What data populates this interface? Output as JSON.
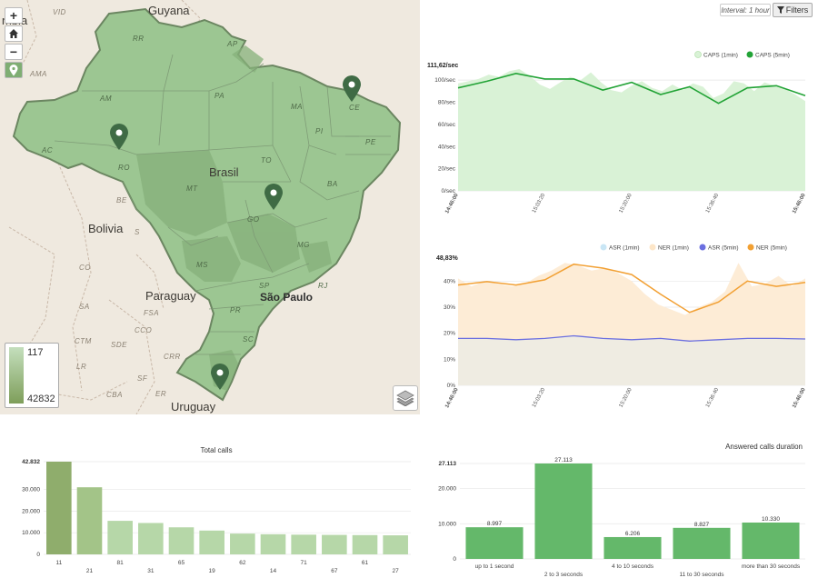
{
  "map": {
    "country_labels": [
      "Guyana",
      "Bolivia",
      "Paraguay",
      "Uruguay",
      "Brasil",
      "mbia"
    ],
    "city_label": "São Paulo",
    "state_labels": [
      "RR",
      "AP",
      "AM",
      "PA",
      "MA",
      "CE",
      "PI",
      "PE",
      "AC",
      "RO",
      "MT",
      "TO",
      "BA",
      "GO",
      "MG",
      "MS",
      "SP",
      "RJ",
      "PR",
      "SC"
    ],
    "region_labels": [
      "VID",
      "AMA",
      "BE",
      "S",
      "CO",
      "SA",
      "CTM",
      "SDE",
      "CCO",
      "FSA",
      "LR",
      "SF",
      "CBA",
      "CRR",
      "ER"
    ],
    "controls": {
      "zoom_in": "+",
      "zoom_out": "−"
    },
    "legend": {
      "max": "117",
      "min": "42832",
      "color_top": "#c4dfbd",
      "color_bottom": "#7e9e5a"
    },
    "markers": 4,
    "fill_color": "#9cc692",
    "marker_color": "#3f6b45"
  },
  "toolbar": {
    "interval": "Interval: 1 hour",
    "filters": "Filters"
  },
  "caps_chart": {
    "ymax_label": "111,62/sec",
    "y_ticks": [
      "100/sec",
      "80/sec",
      "60/sec",
      "40/sec",
      "20/sec",
      "0/sec"
    ],
    "x_ticks": [
      "14:46:00",
      "15:03:20",
      "15:20:00",
      "15:36:40",
      "15:46:00"
    ],
    "legend": [
      "CAPS (1min)",
      "CAPS (5min)"
    ],
    "colors": {
      "area": "#d9f2d6",
      "line": "#22a336"
    },
    "y_min": 0,
    "y_max": 111.62,
    "series_1min": [
      97,
      99,
      101,
      105,
      103,
      108,
      110,
      104,
      96,
      92,
      98,
      103,
      100,
      107,
      98,
      91,
      89,
      95,
      99,
      93,
      90,
      96,
      91,
      97,
      94,
      84,
      88,
      99,
      97,
      90,
      98,
      95,
      92,
      87,
      81
    ],
    "series_5min": [
      93,
      99,
      106,
      101,
      101,
      91,
      98,
      87,
      94,
      79,
      93,
      95,
      86
    ]
  },
  "asr_chart": {
    "ymax_label": "48,83%",
    "y_ticks": [
      "40%",
      "30%",
      "20%",
      "10%",
      "0%"
    ],
    "x_ticks": [
      "14:46:00",
      "15:03:20",
      "15:20:00",
      "15:36:40",
      "15:46:00"
    ],
    "legend": [
      "ASR (1min)",
      "NER (1min)",
      "ASR (5min)",
      "NER (5min)"
    ],
    "colors": {
      "asr_area": "#efece2",
      "ner_area": "#fdecd6",
      "asr_line": "#6b6fe0",
      "ner_line": "#f2a033",
      "asr_legend": "#c9e6f5",
      "ner_legend": "#fde6c8"
    },
    "y_min": 0,
    "y_max": 48.83,
    "ner_1min": [
      41,
      38,
      40,
      39,
      38,
      39,
      42,
      44,
      47,
      46,
      44,
      45,
      43,
      40,
      35,
      31,
      29,
      27,
      30,
      32,
      36,
      47,
      38,
      39,
      42,
      38,
      41
    ],
    "ner_5min": [
      38.5,
      39.8,
      38.5,
      40.5,
      46.5,
      45,
      42.5,
      35,
      28,
      32,
      40,
      38,
      39.5
    ],
    "asr_5min": [
      18,
      18,
      17.5,
      18,
      19,
      18,
      17.5,
      18,
      17,
      17.5,
      18,
      18,
      17.8
    ]
  },
  "total_calls": {
    "title": "Total calls",
    "y_ticks": [
      "42.832",
      "30.000",
      "20.000",
      "10.000",
      "0"
    ],
    "y_max": 42832,
    "categories": [
      "11",
      "21",
      "81",
      "31",
      "65",
      "19",
      "62",
      "14",
      "71",
      "67",
      "61",
      "27"
    ],
    "values": [
      42832,
      31000,
      15500,
      14500,
      12500,
      11000,
      9600,
      9300,
      9100,
      9000,
      8900,
      8800
    ],
    "colors": [
      "#8fad6c",
      "#a3c488",
      "#b6d7a8",
      "#b6d7a8",
      "#b6d7a8",
      "#b6d7a8",
      "#b6d7a8",
      "#b6d7a8",
      "#b6d7a8",
      "#b6d7a8",
      "#b6d7a8",
      "#b6d7a8"
    ]
  },
  "answered_duration": {
    "title": "Answered calls duration",
    "y_ticks": [
      "27.113",
      "20.000",
      "10.000",
      "0"
    ],
    "y_max": 27113,
    "categories": [
      "up to 1 second",
      "2 to 3 seconds",
      "4 to 10 seconds",
      "11 to 30 seconds",
      "more than 30 seconds"
    ],
    "values": [
      8997,
      27113,
      6206,
      8827,
      10330
    ],
    "value_labels": [
      "8.997",
      "27.113",
      "6.206",
      "8.827",
      "10.330"
    ],
    "color": "#64b86a"
  }
}
